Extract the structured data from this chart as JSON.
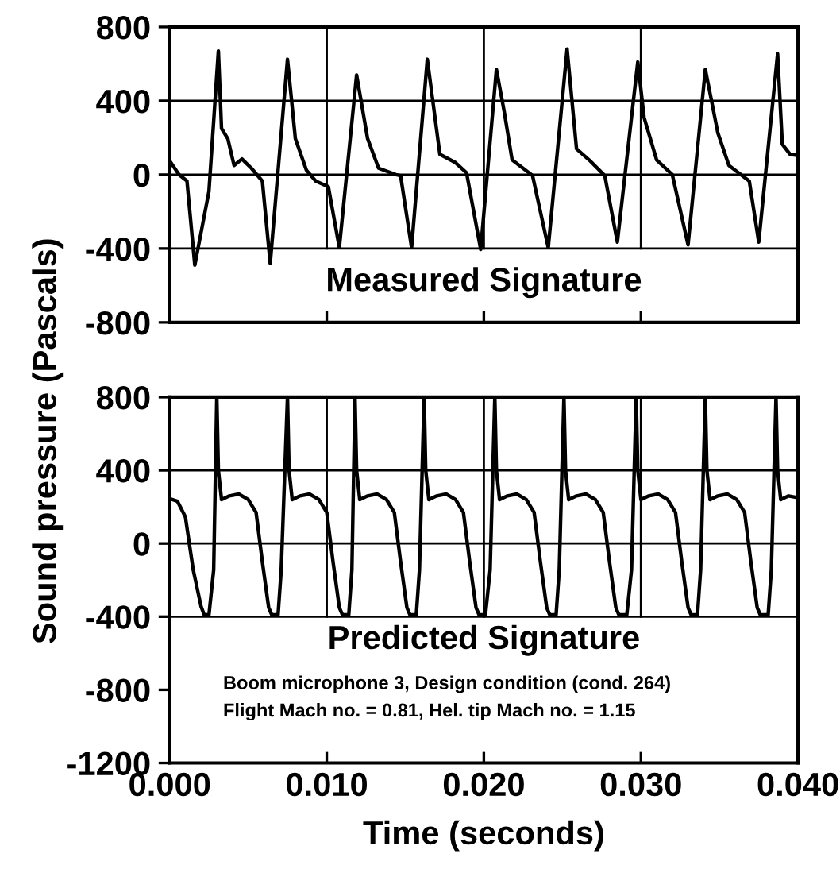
{
  "chart_data": [
    {
      "type": "line",
      "title": "Measured Signature",
      "xlim": [
        0,
        0.04
      ],
      "ylim": [
        -800,
        800
      ],
      "xticks": [
        {
          "value": 0,
          "label": null
        },
        {
          "value": 0.01,
          "label": null
        },
        {
          "value": 0.02,
          "label": null
        },
        {
          "value": 0.03,
          "label": null
        },
        {
          "value": 0.04,
          "label": null
        }
      ],
      "yticks": [
        -800,
        -400,
        0,
        400,
        800
      ],
      "tick_labels": "y",
      "grid": false,
      "legend": false,
      "marker": "none",
      "line_style": "solid",
      "ref_lines": [
        {
          "axis": "y",
          "value": 400
        },
        {
          "axis": "y",
          "value": 0
        },
        {
          "axis": "y",
          "value": -400
        },
        {
          "axis": "x",
          "value": 0.01
        },
        {
          "axis": "x",
          "value": 0.02
        },
        {
          "axis": "x",
          "value": 0.03
        }
      ],
      "series": [
        {
          "color": "#000000",
          "x": [
            0,
            0.0006,
            0.0011,
            0.0016,
            0.0025,
            0.0031,
            0.0033,
            0.0037,
            0.0041,
            0.0046,
            0.0052,
            0.0059,
            0.0064,
            0.0075,
            0.008,
            0.0087,
            0.0093,
            0.0101,
            0.0108,
            0.0119,
            0.0126,
            0.0133,
            0.0144,
            0.0147,
            0.0154,
            0.0164,
            0.0172,
            0.0182,
            0.0189,
            0.0198,
            0.0208,
            0.0213,
            0.0218,
            0.0231,
            0.0241,
            0.0253,
            0.0259,
            0.0267,
            0.0277,
            0.0285,
            0.0298,
            0.0302,
            0.031,
            0.032,
            0.033,
            0.0341,
            0.0349,
            0.0356,
            0.0369,
            0.0375,
            0.0387,
            0.039,
            0.0395,
            0.0399
          ],
          "values": [
            75,
            0,
            -34,
            -490,
            -90,
            670,
            250,
            195,
            50,
            85,
            35,
            -35,
            -480,
            625,
            195,
            25,
            -35,
            -65,
            -395,
            540,
            195,
            35,
            0,
            -5,
            -395,
            625,
            110,
            65,
            10,
            -405,
            570,
            340,
            80,
            -5,
            -395,
            680,
            140,
            80,
            -5,
            -365,
            610,
            310,
            80,
            0,
            -380,
            570,
            225,
            50,
            -35,
            -365,
            655,
            165,
            110,
            105
          ]
        }
      ]
    },
    {
      "type": "line",
      "title": "Predicted Signature",
      "xlabel": "Time (seconds)",
      "ylabel": "Sound pressure (Pascals)",
      "xlim": [
        0,
        0.04
      ],
      "ylim": [
        -1200,
        800
      ],
      "xticks": [
        {
          "value": 0,
          "label": "0.000"
        },
        {
          "value": 0.01,
          "label": "0.010"
        },
        {
          "value": 0.02,
          "label": "0.020"
        },
        {
          "value": 0.03,
          "label": "0.030"
        },
        {
          "value": 0.04,
          "label": "0.040"
        }
      ],
      "yticks": [
        -1200,
        -800,
        -400,
        0,
        400,
        800
      ],
      "grid": false,
      "legend": false,
      "marker": "none",
      "line_style": "solid",
      "ref_lines": [
        {
          "axis": "y",
          "value": 400
        },
        {
          "axis": "y",
          "value": 0
        },
        {
          "axis": "y",
          "value": -400
        },
        {
          "axis": "x",
          "value": 0.01
        },
        {
          "axis": "x",
          "value": 0.02
        },
        {
          "axis": "x",
          "value": 0.03
        }
      ],
      "annotations": [
        "Boom microphone 3, Design condition (cond. 264)",
        "Flight Mach no. = 0.81, Hel. tip Mach no. = 1.15"
      ],
      "series": [
        {
          "color": "#000000",
          "x": [
            0,
            0.0005,
            0.001,
            0.0015,
            0.002,
            0.0022,
            0.0025,
            0.0028,
            0.003,
            0.0031,
            0.0033,
            0.0038,
            0.0044,
            0.005,
            0.0055,
            0.0059,
            0.0063,
            0.0065,
            0.0069,
            0.0071,
            0.0075,
            0.0076,
            0.0078,
            0.0083,
            0.0089,
            0.0095,
            0.01,
            0.0104,
            0.0108,
            0.011,
            0.0114,
            0.0116,
            0.0118,
            0.0119,
            0.0121,
            0.0126,
            0.0132,
            0.0138,
            0.0143,
            0.0147,
            0.0151,
            0.0153,
            0.0157,
            0.0159,
            0.0162,
            0.0163,
            0.0165,
            0.017,
            0.0176,
            0.0182,
            0.0187,
            0.0191,
            0.0195,
            0.0197,
            0.0201,
            0.0204,
            0.0207,
            0.0208,
            0.021,
            0.0215,
            0.0221,
            0.0227,
            0.0232,
            0.0236,
            0.024,
            0.0242,
            0.0246,
            0.0248,
            0.0251,
            0.0252,
            0.0254,
            0.0259,
            0.0265,
            0.0271,
            0.0276,
            0.028,
            0.0284,
            0.0286,
            0.0291,
            0.0294,
            0.0297,
            0.0298,
            0.03,
            0.0305,
            0.0311,
            0.0317,
            0.0322,
            0.0326,
            0.033,
            0.0332,
            0.0336,
            0.0338,
            0.0341,
            0.0342,
            0.0344,
            0.0349,
            0.0355,
            0.0361,
            0.0366,
            0.037,
            0.0374,
            0.0376,
            0.0381,
            0.0383,
            0.0386,
            0.0387,
            0.0389,
            0.0394,
            0.04
          ],
          "values": [
            245,
            230,
            145,
            -145,
            -345,
            -390,
            -390,
            -145,
            800,
            400,
            240,
            260,
            270,
            240,
            170,
            -100,
            -350,
            -390,
            -390,
            -145,
            800,
            400,
            240,
            260,
            270,
            240,
            170,
            -100,
            -350,
            -390,
            -390,
            -145,
            800,
            400,
            240,
            260,
            270,
            240,
            170,
            -100,
            -350,
            -390,
            -390,
            -145,
            800,
            400,
            240,
            260,
            270,
            240,
            170,
            -100,
            -350,
            -390,
            -390,
            -145,
            800,
            400,
            240,
            260,
            270,
            240,
            170,
            -100,
            -350,
            -390,
            -390,
            -145,
            800,
            400,
            240,
            260,
            270,
            240,
            170,
            -100,
            -350,
            -390,
            -390,
            -145,
            800,
            400,
            240,
            260,
            270,
            240,
            170,
            -100,
            -350,
            -390,
            -390,
            -145,
            800,
            400,
            240,
            260,
            270,
            240,
            170,
            -100,
            -350,
            -390,
            -390,
            -145,
            800,
            400,
            240,
            260,
            250
          ]
        }
      ]
    }
  ]
}
